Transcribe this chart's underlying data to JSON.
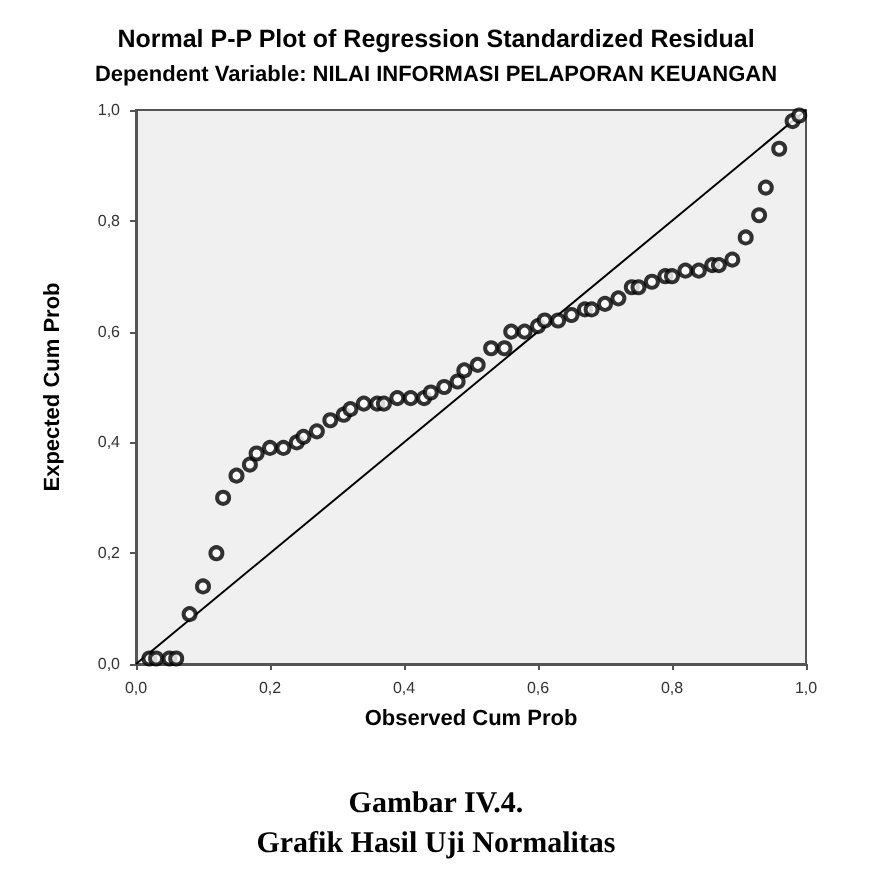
{
  "chart_data": {
    "type": "scatter",
    "title": "Normal P-P Plot of Regression Standardized Residual",
    "subtitle": "Dependent Variable: NILAI INFORMASI PELAPORAN KEUANGAN",
    "xlabel": "Observed Cum Prob",
    "ylabel": "Expected Cum Prob",
    "annotations": [
      "Gambar IV.4.",
      "Grafik Hasil Uji Normalitas"
    ],
    "xlim": [
      0,
      1
    ],
    "ylim": [
      0,
      1
    ],
    "xticks": [
      {
        "value": 0,
        "label": "0,0"
      },
      {
        "value": 0.2,
        "label": "0,2"
      },
      {
        "value": 0.4,
        "label": "0,4"
      },
      {
        "value": 0.6,
        "label": "0,6"
      },
      {
        "value": 0.8,
        "label": "0,8"
      },
      {
        "value": 1,
        "label": "1,0"
      }
    ],
    "yticks": [
      {
        "value": 0,
        "label": "0,0"
      },
      {
        "value": 0.2,
        "label": "0,2"
      },
      {
        "value": 0.4,
        "label": "0,4"
      },
      {
        "value": 0.6,
        "label": "0,6"
      },
      {
        "value": 0.8,
        "label": "0,8"
      },
      {
        "value": 1,
        "label": "1,0"
      }
    ],
    "grid": false,
    "series": [
      {
        "marker": "circle",
        "color": "#000000",
        "x": [
          0.02,
          0.03,
          0.05,
          0.06,
          0.08,
          0.1,
          0.12,
          0.13,
          0.15,
          0.17,
          0.18,
          0.2,
          0.22,
          0.24,
          0.25,
          0.27,
          0.29,
          0.31,
          0.32,
          0.34,
          0.36,
          0.37,
          0.39,
          0.41,
          0.43,
          0.44,
          0.46,
          0.48,
          0.49,
          0.51,
          0.53,
          0.55,
          0.56,
          0.58,
          0.6,
          0.61,
          0.63,
          0.65,
          0.67,
          0.68,
          0.7,
          0.72,
          0.74,
          0.75,
          0.77,
          0.79,
          0.8,
          0.82,
          0.84,
          0.86,
          0.87,
          0.89,
          0.91,
          0.93,
          0.94,
          0.96,
          0.98,
          0.99
        ],
        "values": [
          0.01,
          0.01,
          0.01,
          0.01,
          0.09,
          0.14,
          0.2,
          0.3,
          0.34,
          0.36,
          0.38,
          0.39,
          0.39,
          0.4,
          0.41,
          0.42,
          0.44,
          0.45,
          0.46,
          0.47,
          0.47,
          0.47,
          0.48,
          0.48,
          0.48,
          0.49,
          0.5,
          0.51,
          0.53,
          0.54,
          0.57,
          0.57,
          0.6,
          0.6,
          0.61,
          0.62,
          0.62,
          0.63,
          0.64,
          0.64,
          0.65,
          0.66,
          0.68,
          0.68,
          0.69,
          0.7,
          0.7,
          0.71,
          0.71,
          0.72,
          0.72,
          0.73,
          0.77,
          0.81,
          0.86,
          0.93,
          0.98,
          0.99
        ]
      },
      {
        "type": "line",
        "marker": "none",
        "color": "#000000",
        "x": [
          0,
          1
        ],
        "values": [
          0,
          1
        ]
      }
    ]
  }
}
